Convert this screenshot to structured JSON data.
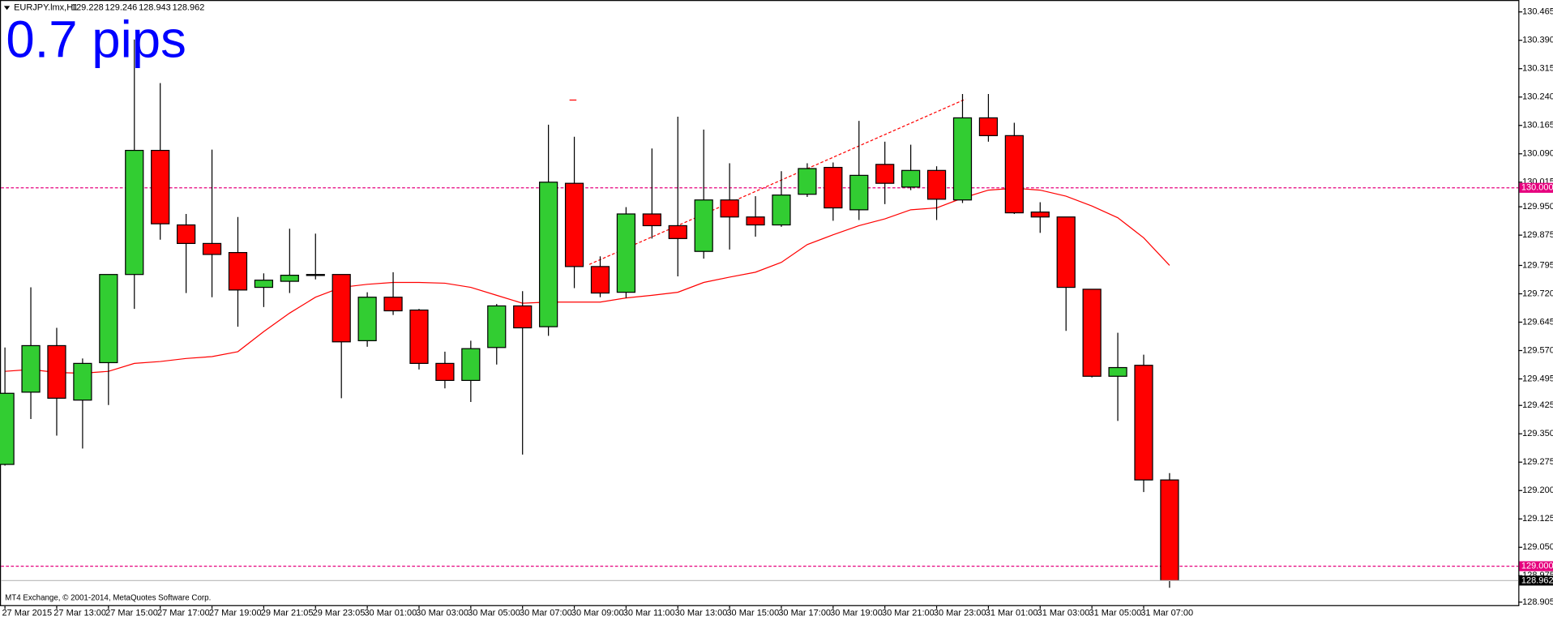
{
  "chart_data": {
    "type": "candlestick",
    "symbol": "EURJPY.lmx,H1",
    "annotation": "0.7 pips",
    "footer": "MT4 Exchange, © 2001-2014, MetaQuotes Software Corp.",
    "categories": [
      "27 Mar 2015",
      null,
      "27 Mar 13:00",
      null,
      "27 Mar 15:00",
      null,
      "27 Mar 17:00",
      null,
      "27 Mar 19:00",
      null,
      "29 Mar 21:05",
      null,
      "29 Mar 23:05",
      null,
      "30 Mar 01:00",
      null,
      "30 Mar 03:00",
      null,
      "30 Mar 05:00",
      null,
      "30 Mar 07:00",
      null,
      "30 Mar 09:00",
      null,
      "30 Mar 11:00",
      null,
      "30 Mar 13:00",
      null,
      "30 Mar 15:00",
      null,
      "30 Mar 17:00",
      null,
      "30 Mar 19:00",
      null,
      "30 Mar 21:00",
      null,
      "30 Mar 23:00",
      null,
      "31 Mar 01:00",
      null,
      "31 Mar 03:00",
      null,
      "31 Mar 05:00",
      null,
      "31 Mar 07:00",
      null
    ],
    "candles": {
      "up_color": "#32cd32",
      "down_color": "#ff0000",
      "open": [
        129.269,
        129.46,
        129.583,
        129.439,
        129.538,
        129.771,
        130.099,
        129.902,
        129.853,
        129.829,
        129.737,
        129.753,
        129.771,
        129.771,
        129.596,
        129.711,
        129.677,
        129.536,
        129.491,
        129.578,
        129.688,
        129.633,
        130.012,
        129.792,
        129.724,
        129.931,
        129.9,
        129.832,
        129.968,
        129.923,
        129.902,
        129.983,
        130.054,
        129.942,
        130.062,
        130.002,
        130.046,
        129.968,
        130.185,
        130.138,
        129.936,
        129.923,
        129.732,
        129.502,
        129.531,
        129.228
      ],
      "high": [
        129.578,
        129.737,
        129.63,
        129.549,
        129.771,
        130.392,
        130.277,
        129.931,
        130.101,
        129.923,
        129.774,
        129.892,
        129.879,
        129.771,
        129.724,
        129.777,
        129.68,
        129.567,
        129.596,
        129.693,
        129.727,
        130.167,
        130.135,
        129.819,
        129.949,
        130.104,
        130.188,
        130.154,
        130.065,
        129.978,
        130.044,
        130.065,
        130.067,
        130.177,
        130.122,
        130.114,
        130.057,
        130.248,
        130.248,
        130.172,
        129.962,
        129.923,
        129.732,
        129.617,
        129.559,
        129.246
      ],
      "low": [
        129.266,
        129.389,
        129.345,
        129.311,
        129.426,
        129.68,
        129.863,
        129.722,
        129.711,
        129.633,
        129.685,
        129.722,
        129.758,
        129.444,
        129.58,
        129.664,
        129.52,
        129.47,
        129.434,
        129.533,
        129.295,
        129.609,
        129.735,
        129.711,
        129.709,
        129.866,
        129.766,
        129.813,
        129.837,
        129.871,
        129.897,
        129.976,
        129.913,
        129.915,
        129.957,
        129.994,
        129.915,
        129.96,
        130.122,
        129.931,
        129.881,
        129.622,
        129.499,
        129.384,
        129.196,
        128.943
      ],
      "close": [
        129.457,
        129.583,
        129.444,
        129.536,
        129.771,
        130.099,
        129.905,
        129.853,
        129.824,
        129.73,
        129.756,
        129.769,
        129.769,
        129.593,
        129.711,
        129.675,
        129.536,
        129.491,
        129.575,
        129.688,
        129.63,
        130.015,
        129.792,
        129.722,
        129.931,
        129.9,
        129.866,
        129.968,
        129.923,
        129.902,
        129.981,
        130.051,
        129.947,
        130.033,
        130.012,
        130.046,
        129.97,
        130.185,
        130.138,
        129.934,
        129.923,
        129.737,
        129.502,
        129.525,
        129.228,
        128.962
      ]
    },
    "ma": {
      "color": "#ff0000",
      "values": [
        129.515,
        129.52,
        129.512,
        129.51,
        129.515,
        129.536,
        129.541,
        129.549,
        129.554,
        129.567,
        129.62,
        129.669,
        129.711,
        129.737,
        129.745,
        129.75,
        129.75,
        129.748,
        129.737,
        129.716,
        129.695,
        129.698,
        129.698,
        129.698,
        129.709,
        129.716,
        129.724,
        129.75,
        129.764,
        129.777,
        129.803,
        129.85,
        129.876,
        129.9,
        129.918,
        129.942,
        129.947,
        129.973,
        129.994,
        129.999,
        129.994,
        129.978,
        129.952,
        129.921,
        129.868,
        129.795
      ]
    },
    "hlines": [
      {
        "value": 130,
        "label": "130.000",
        "color": "#e6007e"
      },
      {
        "value": 129,
        "label": "129.000",
        "color": "#e6007e"
      }
    ],
    "ylim": [
      128.905,
      130.465
    ],
    "yticks": [
      {
        "value": 130.465,
        "label": "130.465"
      },
      {
        "value": 130.39,
        "label": "130.390"
      },
      {
        "value": 130.315,
        "label": "130.315"
      },
      {
        "value": 130.24,
        "label": "130.240"
      },
      {
        "value": 130.165,
        "label": "130.165"
      },
      {
        "value": 130.09,
        "label": "130.090"
      },
      {
        "value": 130.015,
        "label": "130.015"
      },
      {
        "value": 129.95,
        "label": "129.950"
      },
      {
        "value": 129.875,
        "label": "129.875"
      },
      {
        "value": 129.795,
        "label": "129.795"
      },
      {
        "value": 129.72,
        "label": "129.720"
      },
      {
        "value": 129.645,
        "label": "129.645"
      },
      {
        "value": 129.57,
        "label": "129.570"
      },
      {
        "value": 129.495,
        "label": "129.495"
      },
      {
        "value": 129.425,
        "label": "129.425"
      },
      {
        "value": 129.35,
        "label": "129.350"
      },
      {
        "value": 129.275,
        "label": "129.275"
      },
      {
        "value": 129.2,
        "label": "129.200"
      },
      {
        "value": 129.125,
        "label": "129.125"
      },
      {
        "value": 129.05,
        "label": "129.050"
      },
      {
        "value": 128.975,
        "label": "128.975"
      },
      {
        "value": 128.905,
        "label": "128.905"
      }
    ],
    "grid": false
  }
}
